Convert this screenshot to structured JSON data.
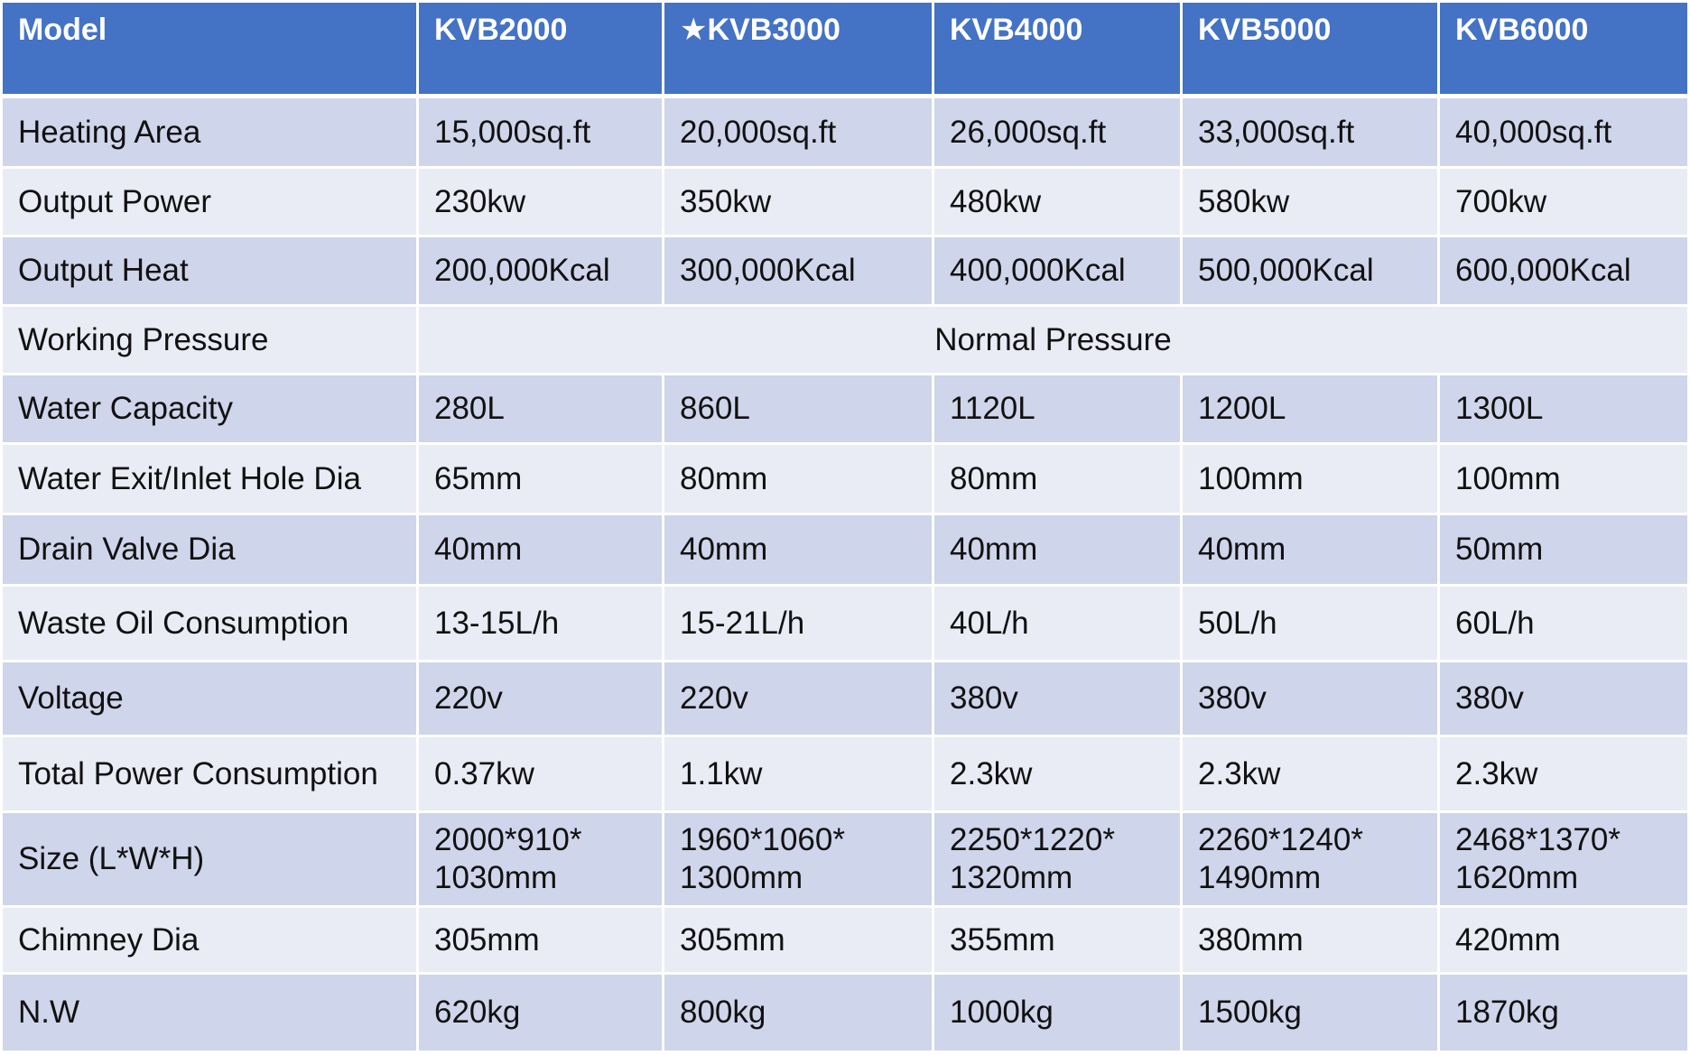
{
  "table": {
    "header": [
      "Model",
      "KVB2000",
      "★KVB3000",
      "KVB4000",
      "KVB5000",
      "KVB6000"
    ],
    "rows": [
      {
        "label": "Heating Area",
        "cells": [
          "15,000sq.ft",
          "20,000sq.ft",
          "26,000sq.ft",
          "33,000sq.ft",
          "40,000sq.ft"
        ]
      },
      {
        "label": "Output Power",
        "cells": [
          "230kw",
          "350kw",
          "480kw",
          "580kw",
          "700kw"
        ]
      },
      {
        "label": "Output Heat",
        "cells": [
          "200,000Kcal",
          "300,000Kcal",
          "400,000Kcal",
          "500,000Kcal",
          "600,000Kcal"
        ]
      },
      {
        "label": "Working Pressure",
        "cells": [
          "Normal Pressure"
        ]
      },
      {
        "label": "Water Capacity",
        "cells": [
          "280L",
          "860L",
          "1120L",
          "1200L",
          "1300L"
        ]
      },
      {
        "label": "Water Exit/Inlet Hole Dia",
        "cells": [
          "65mm",
          "80mm",
          "80mm",
          "100mm",
          "100mm"
        ]
      },
      {
        "label": "Drain Valve Dia",
        "cells": [
          "40mm",
          "40mm",
          "40mm",
          "40mm",
          "50mm"
        ]
      },
      {
        "label": "Waste Oil Consumption",
        "cells": [
          "13-15L/h",
          "15-21L/h",
          "40L/h",
          "50L/h",
          "60L/h"
        ]
      },
      {
        "label": "Voltage",
        "cells": [
          "220v",
          "220v",
          "380v",
          "380v",
          "380v"
        ]
      },
      {
        "label": "Total Power Consumption",
        "cells": [
          "0.37kw",
          "1.1kw",
          "2.3kw",
          "2.3kw",
          "2.3kw"
        ]
      },
      {
        "label": "Size (L*W*H)",
        "cells": [
          "2000*910*\n1030mm",
          "1960*1060*\n1300mm",
          "2250*1220*\n1320mm",
          "2260*1240*\n1490mm",
          "2468*1370*\n1620mm"
        ]
      },
      {
        "label": "Chimney Dia",
        "cells": [
          "305mm",
          "305mm",
          "355mm",
          "380mm",
          "420mm"
        ]
      },
      {
        "label": "N.W",
        "cells": [
          "620kg",
          "800kg",
          "1000kg",
          "1500kg",
          "1870kg"
        ]
      }
    ]
  }
}
